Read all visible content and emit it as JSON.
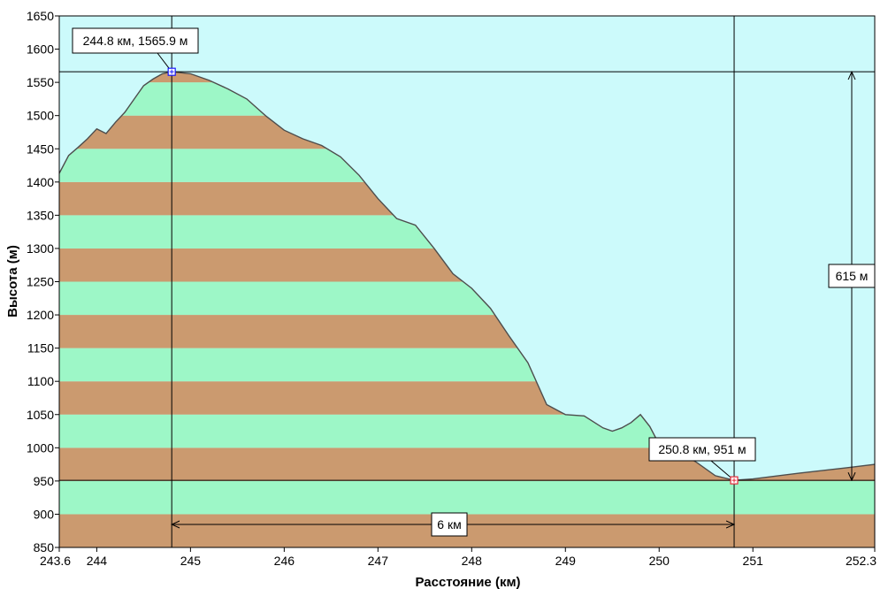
{
  "colors": {
    "sky": "#ccfafb",
    "stripe_brown": "#cb9a6f",
    "stripe_green": "#9df7c7",
    "terrain_line": "#4d4d4d",
    "start_marker": "#1a1aff",
    "end_marker": "#e8283a"
  },
  "chart_data": {
    "type": "area",
    "xlabel": "Расстояние (км)",
    "ylabel": "Высота (м)",
    "xlim": [
      243.6,
      252.3
    ],
    "ylim": [
      850,
      1650
    ],
    "x_ticks": [
      "243.6",
      "244",
      "245",
      "246",
      "247",
      "248",
      "249",
      "250",
      "251",
      "252.3"
    ],
    "y_ticks": [
      "1650",
      "1600",
      "1550",
      "1500",
      "1450",
      "1400",
      "1350",
      "1300",
      "1250",
      "1200",
      "1150",
      "1100",
      "1050",
      "1000",
      "950",
      "900",
      "850"
    ],
    "band_interval": 50,
    "grid": false,
    "series": [
      {
        "x": [
          243.6,
          243.7,
          243.8,
          243.9,
          244.0,
          244.1,
          244.2,
          244.3,
          244.4,
          244.5,
          244.6,
          244.7,
          244.8,
          245.0,
          245.2,
          245.4,
          245.6,
          245.8,
          246.0,
          246.2,
          246.4,
          246.6,
          246.8,
          247.0,
          247.2,
          247.4,
          247.6,
          247.8,
          248.0,
          248.2,
          248.4,
          248.6,
          248.8,
          249.0,
          249.2,
          249.4,
          249.5,
          249.6,
          249.7,
          249.8,
          249.9,
          250.0,
          250.2,
          250.4,
          250.6,
          250.8,
          251.0,
          251.5,
          252.0,
          252.3
        ],
        "y": [
          1413,
          1440,
          1452,
          1465,
          1480,
          1473,
          1490,
          1505,
          1525,
          1545,
          1555,
          1563,
          1566,
          1563,
          1553,
          1540,
          1525,
          1500,
          1478,
          1465,
          1455,
          1438,
          1410,
          1375,
          1345,
          1335,
          1300,
          1262,
          1240,
          1210,
          1168,
          1128,
          1065,
          1050,
          1048,
          1030,
          1025,
          1030,
          1038,
          1050,
          1032,
          1005,
          995,
          978,
          958,
          951,
          953,
          962,
          970,
          975
        ]
      }
    ],
    "annotations": {
      "start_label": "244.8 км, 1565.9 м",
      "end_label": "250.8 км, 951 м",
      "distance_label": "6 км",
      "height_diff_label": "615 м",
      "start_point": [
        244.8,
        1565.9
      ],
      "end_point": [
        250.8,
        951
      ]
    }
  }
}
